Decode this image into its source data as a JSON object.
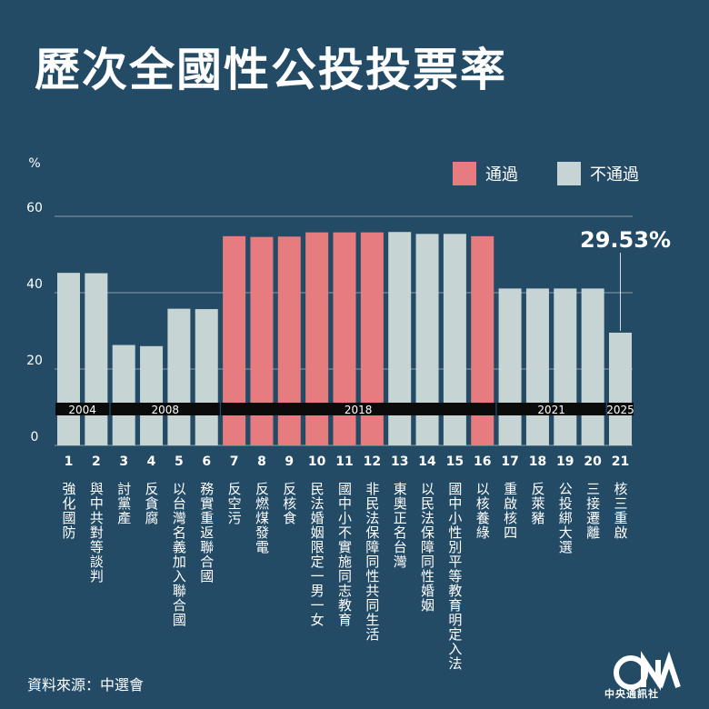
{
  "title": "歷次全國性公投投票率",
  "source": "資料來源：中選會",
  "logo_text": "中央通訊社",
  "colors": {
    "background": "#244b66",
    "pass": "#e77c80",
    "fail": "#c7d4d4",
    "year_band": "#0b0b0b"
  },
  "chart_data": {
    "type": "bar",
    "ylabel": "%",
    "ylim": [
      0,
      60
    ],
    "yticks": [
      0,
      20,
      40,
      60
    ],
    "legend": [
      {
        "label": "通過",
        "status": "pass"
      },
      {
        "label": "不通過",
        "status": "fail"
      }
    ],
    "categories": [
      "1",
      "2",
      "3",
      "4",
      "5",
      "6",
      "7",
      "8",
      "9",
      "10",
      "11",
      "12",
      "13",
      "14",
      "15",
      "16",
      "17",
      "18",
      "19",
      "20",
      "21"
    ],
    "names": [
      "強化國防",
      "與中共對等談判",
      "討黨產",
      "反貪腐",
      "以台灣名義加入聯合國",
      "務實重返聯合國",
      "反空污",
      "反燃煤發電",
      "反核食",
      "民法婚姻限定一男一女",
      "國中小不實施同志教育",
      "非民法保障同性共同生活",
      "東奧正名台灣",
      "以民法保障同性婚姻",
      "國中小性別平等教育明定入法",
      "以核養綠",
      "重啟核四",
      "反萊豬",
      "公投綁大選",
      "三接遷離",
      "核三重啟"
    ],
    "values": [
      45.2,
      45.1,
      26.3,
      26.0,
      35.8,
      35.7,
      54.8,
      54.6,
      54.7,
      55.8,
      55.8,
      55.8,
      55.9,
      55.4,
      55.4,
      54.8,
      41.1,
      41.1,
      41.1,
      41.1,
      29.53
    ],
    "status": [
      "fail",
      "fail",
      "fail",
      "fail",
      "fail",
      "fail",
      "pass",
      "pass",
      "pass",
      "pass",
      "pass",
      "pass",
      "fail",
      "fail",
      "fail",
      "pass",
      "fail",
      "fail",
      "fail",
      "fail",
      "fail"
    ],
    "year_groups": [
      {
        "label": "2004",
        "from": 0,
        "to": 1
      },
      {
        "label": "2008",
        "from": 2,
        "to": 5
      },
      {
        "label": "2018",
        "from": 6,
        "to": 15
      },
      {
        "label": "2021",
        "from": 16,
        "to": 19
      },
      {
        "label": "2025",
        "from": 20,
        "to": 20
      }
    ],
    "annotation": {
      "index": 20,
      "text": "29.53%"
    }
  }
}
